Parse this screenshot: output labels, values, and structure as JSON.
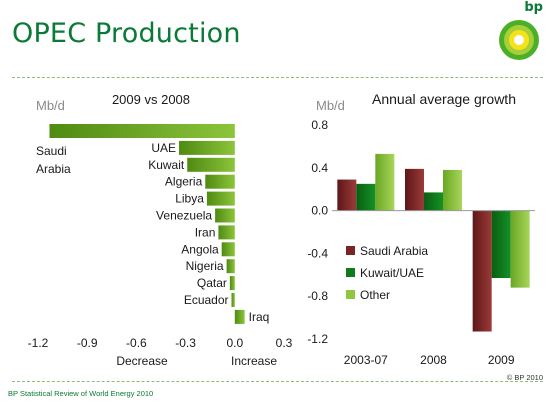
{
  "header": {
    "title": "OPEC Production",
    "logo_text": "bp"
  },
  "footer": {
    "source": "BP Statistical Review of World Energy 2010",
    "copyright": "© BP 2010"
  },
  "colors": {
    "green_bar": "#6fa51c",
    "saudi": "#7a2425",
    "kuwait": "#0f7b1b",
    "other": "#8ec63f",
    "title_green": "#0a7a36"
  },
  "chart_data": [
    {
      "type": "bar",
      "orientation": "horizontal",
      "title": "2009 vs 2008",
      "unit_label": "Mb/d",
      "categories": [
        "Saudi Arabia",
        "UAE",
        "Kuwait",
        "Algeria",
        "Libya",
        "Venezuela",
        "Iran",
        "Angola",
        "Nigeria",
        "Qatar",
        "Ecuador",
        "Iraq"
      ],
      "values": [
        -1.13,
        -0.34,
        -0.29,
        -0.18,
        -0.17,
        -0.12,
        -0.1,
        -0.08,
        -0.05,
        -0.03,
        -0.02,
        0.06
      ],
      "xlim": [
        -1.2,
        0.3
      ],
      "xticks": [
        "-1.2",
        "-0.9",
        "-0.6",
        "-0.3",
        "0.0",
        "0.3"
      ],
      "xtick_values": [
        -1.2,
        -0.9,
        -0.6,
        -0.3,
        0.0,
        0.3
      ],
      "axis_left_label": "Decrease",
      "axis_right_label": "Increase",
      "grid": false
    },
    {
      "type": "bar",
      "title": "Annual average growth",
      "unit_label": "Mb/d",
      "categories": [
        "2003-07",
        "2008",
        "2009"
      ],
      "series": [
        {
          "name": "Saudi Arabia",
          "values": [
            0.29,
            0.39,
            -1.13
          ]
        },
        {
          "name": "Kuwait/UAE",
          "values": [
            0.25,
            0.17,
            -0.63
          ]
        },
        {
          "name": "Other",
          "values": [
            0.53,
            0.38,
            -0.72
          ]
        }
      ],
      "ylim": [
        -1.2,
        0.8
      ],
      "yticks": [
        "0.8",
        "0.4",
        "0.0",
        "-0.4",
        "-0.8",
        "-1.2"
      ],
      "ytick_values": [
        0.8,
        0.4,
        0.0,
        -0.4,
        -0.8,
        -1.2
      ],
      "legend_position": "lower-left",
      "grid": false
    }
  ]
}
